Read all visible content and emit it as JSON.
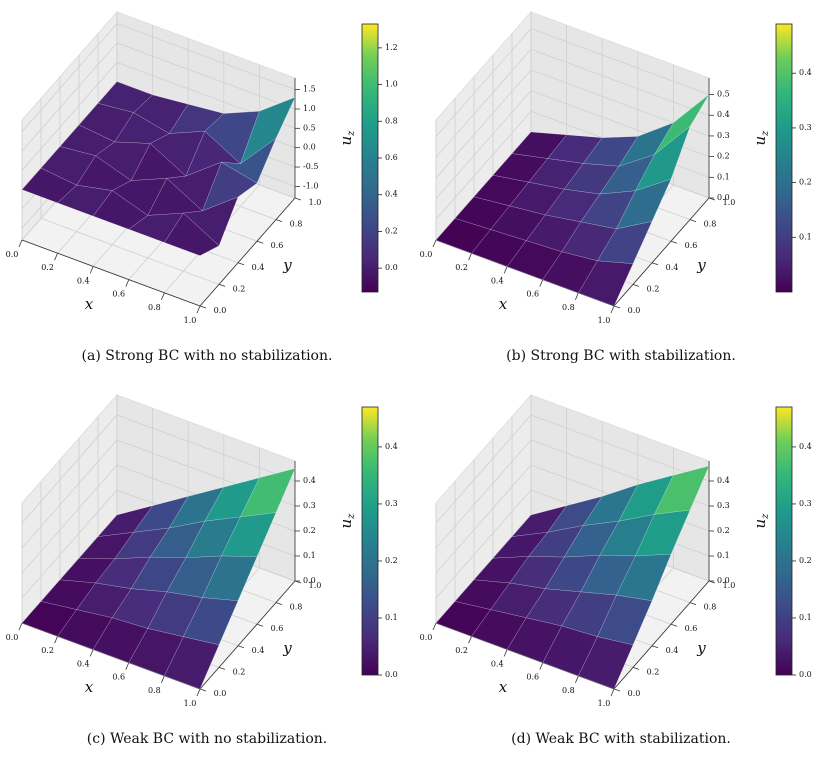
{
  "chart_data": [
    {
      "type": "surface",
      "caption": "(a) Strong BC with no stabilization.",
      "xlabel": "x",
      "ylabel": "y",
      "zlabel": "u",
      "zlabel_sub": "z",
      "colormap": "viridis",
      "x": [
        0,
        0.2,
        0.4,
        0.6,
        0.8,
        1
      ],
      "y": [
        0,
        0.2,
        0.4,
        0.6,
        0.8,
        1
      ],
      "z": [
        [
          0,
          0,
          0,
          0,
          0,
          0
        ],
        [
          0,
          -0.1,
          0.1,
          -0.1,
          0.1,
          0
        ],
        [
          0,
          0.1,
          -0.2,
          0.2,
          -0.1,
          0.1
        ],
        [
          0,
          -0.2,
          0.2,
          -0.3,
          0.3,
          0.2
        ],
        [
          0,
          0.2,
          -0.3,
          0.4,
          -0.2,
          0.6
        ],
        [
          0,
          -0.3,
          0.4,
          0.2,
          0.8,
          1.3
        ]
      ],
      "xlim": [
        0,
        1
      ],
      "ylim": [
        0,
        1
      ],
      "zlim": [
        -1.3,
        1.8
      ],
      "xticks": [
        {
          "value": 0,
          "label": "0.0"
        },
        0.2,
        0.4,
        0.6,
        0.8,
        {
          "value": 1,
          "label": "1.0"
        }
      ],
      "yticks": [
        {
          "value": 0,
          "label": "0.0"
        },
        0.2,
        0.4,
        0.6,
        0.8,
        {
          "value": 1,
          "label": "1.0"
        }
      ],
      "zticks": [
        {
          "value": -1,
          "label": "-1.0"
        },
        -0.5,
        {
          "value": 0,
          "label": "0.0"
        },
        0.5,
        {
          "value": 1,
          "label": "1.0"
        },
        1.5
      ],
      "colorbar": {
        "lim": [
          -0.13,
          1.33
        ],
        "ticks": [
          {
            "value": 0,
            "label": "0.0"
          },
          0.2,
          0.4,
          0.6,
          0.8,
          {
            "value": 1,
            "label": "1.0"
          },
          1.2
        ]
      }
    },
    {
      "type": "surface",
      "caption": "(b) Strong BC with stabilization.",
      "xlabel": "x",
      "ylabel": "y",
      "zlabel": "u",
      "zlabel_sub": "z",
      "colormap": "viridis",
      "x": [
        0,
        0.2,
        0.4,
        0.6,
        0.8,
        1
      ],
      "y": [
        0,
        0.2,
        0.4,
        0.6,
        0.8,
        1
      ],
      "z": [
        [
          0,
          0,
          0,
          0,
          0,
          0
        ],
        [
          0,
          0.01,
          0.02,
          0.03,
          0.04,
          0.05
        ],
        [
          0,
          0.02,
          0.04,
          0.06,
          0.08,
          0.1
        ],
        [
          0,
          0.03,
          0.07,
          0.1,
          0.13,
          0.17
        ],
        [
          0,
          0.05,
          0.1,
          0.18,
          0.25,
          0.3
        ],
        [
          0,
          0.1,
          0.2,
          0.3,
          0.45,
          0.5
        ]
      ],
      "xlim": [
        0,
        1
      ],
      "ylim": [
        0,
        1
      ],
      "zlim": [
        0,
        0.58
      ],
      "xticks": [
        {
          "value": 0,
          "label": "0.0"
        },
        0.2,
        0.4,
        0.6,
        0.8,
        {
          "value": 1,
          "label": "1.0"
        }
      ],
      "yticks": [
        {
          "value": 0,
          "label": "0.0"
        },
        0.2,
        0.4,
        0.6,
        0.8,
        {
          "value": 1,
          "label": "1.0"
        }
      ],
      "zticks": [
        {
          "value": 0,
          "label": "0.0"
        },
        0.1,
        0.2,
        0.3,
        0.4,
        0.5
      ],
      "colorbar": {
        "lim": [
          0,
          0.49
        ],
        "ticks": [
          0.1,
          0.2,
          0.3,
          0.4
        ]
      }
    },
    {
      "type": "surface",
      "caption": "(c) Weak BC with no stabilization.",
      "xlabel": "x",
      "ylabel": "y",
      "zlabel": "u",
      "zlabel_sub": "z",
      "colormap": "viridis",
      "x": [
        0,
        0.2,
        0.4,
        0.6,
        0.8,
        1
      ],
      "y": [
        0,
        0.2,
        0.4,
        0.6,
        0.8,
        1
      ],
      "z": [
        [
          0,
          0,
          0,
          0,
          0,
          0
        ],
        [
          0,
          0.02,
          0.04,
          0.05,
          0.07,
          0.09
        ],
        [
          0,
          0.04,
          0.07,
          0.11,
          0.14,
          0.18
        ],
        [
          0,
          0.05,
          0.11,
          0.16,
          0.22,
          0.27
        ],
        [
          0,
          0.07,
          0.14,
          0.22,
          0.29,
          0.36
        ],
        [
          0,
          0.09,
          0.18,
          0.27,
          0.36,
          0.45
        ]
      ],
      "xlim": [
        0,
        1
      ],
      "ylim": [
        0,
        1
      ],
      "zlim": [
        0,
        0.48
      ],
      "xticks": [
        {
          "value": 0,
          "label": "0.0"
        },
        0.2,
        0.4,
        0.6,
        0.8,
        {
          "value": 1,
          "label": "1.0"
        }
      ],
      "yticks": [
        {
          "value": 0,
          "label": "0.0"
        },
        0.2,
        0.4,
        0.6,
        0.8,
        {
          "value": 1,
          "label": "1.0"
        }
      ],
      "zticks": [
        {
          "value": 0,
          "label": "0.0"
        },
        0.1,
        0.2,
        0.3,
        0.4
      ],
      "colorbar": {
        "lim": [
          0,
          0.47
        ],
        "ticks": [
          {
            "value": 0,
            "label": "0.0"
          },
          0.1,
          0.2,
          0.3,
          0.4
        ]
      }
    },
    {
      "type": "surface",
      "caption": "(d) Weak BC with stabilization.",
      "xlabel": "x",
      "ylabel": "y",
      "zlabel": "u",
      "zlabel_sub": "z",
      "colormap": "viridis",
      "x": [
        0,
        0.2,
        0.4,
        0.6,
        0.8,
        1
      ],
      "y": [
        0,
        0.2,
        0.4,
        0.6,
        0.8,
        1
      ],
      "z": [
        [
          0,
          0,
          0,
          0,
          0,
          0
        ],
        [
          0,
          0.02,
          0.04,
          0.06,
          0.07,
          0.09
        ],
        [
          0,
          0.04,
          0.07,
          0.11,
          0.15,
          0.18
        ],
        [
          0,
          0.06,
          0.11,
          0.17,
          0.22,
          0.28
        ],
        [
          0,
          0.07,
          0.15,
          0.22,
          0.3,
          0.37
        ],
        [
          0,
          0.09,
          0.18,
          0.28,
          0.37,
          0.46
        ]
      ],
      "xlim": [
        0,
        1
      ],
      "ylim": [
        0,
        1
      ],
      "zlim": [
        0,
        0.48
      ],
      "xticks": [
        {
          "value": 0,
          "label": "0.0"
        },
        0.2,
        0.4,
        0.6,
        0.8,
        {
          "value": 1,
          "label": "1.0"
        }
      ],
      "yticks": [
        {
          "value": 0,
          "label": "0.0"
        },
        0.2,
        0.4,
        0.6,
        0.8,
        {
          "value": 1,
          "label": "1.0"
        }
      ],
      "zticks": [
        {
          "value": 0,
          "label": "0.0"
        },
        0.1,
        0.2,
        0.3,
        0.4
      ],
      "colorbar": {
        "lim": [
          0,
          0.47
        ],
        "ticks": [
          {
            "value": 0,
            "label": "0.0"
          },
          0.1,
          0.2,
          0.3,
          0.4
        ]
      }
    }
  ]
}
